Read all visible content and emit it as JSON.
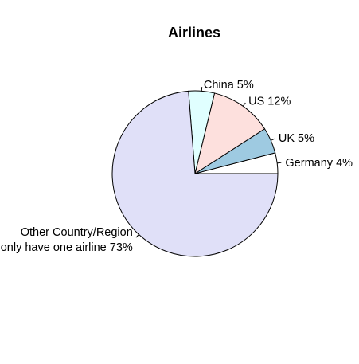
{
  "chart_data": {
    "type": "pie",
    "title": "Airlines",
    "slices": [
      {
        "label_lines": [
          "Germany 4%"
        ],
        "value": 4,
        "color": "#ffffff"
      },
      {
        "label_lines": [
          "UK 5%"
        ],
        "value": 5,
        "color": "#9ecae1"
      },
      {
        "label_lines": [
          "US 12%"
        ],
        "value": 12,
        "color": "#fde0dd"
      },
      {
        "label_lines": [
          "China 5%"
        ],
        "value": 5,
        "color": "#e0ffff"
      },
      {
        "label_lines": [
          "Other Country/Region",
          "only have one airline 73%"
        ],
        "value": 73,
        "color": "#e0e0f8"
      }
    ],
    "start_angle_deg": 0,
    "direction": "counterclockwise",
    "legend": "none"
  }
}
